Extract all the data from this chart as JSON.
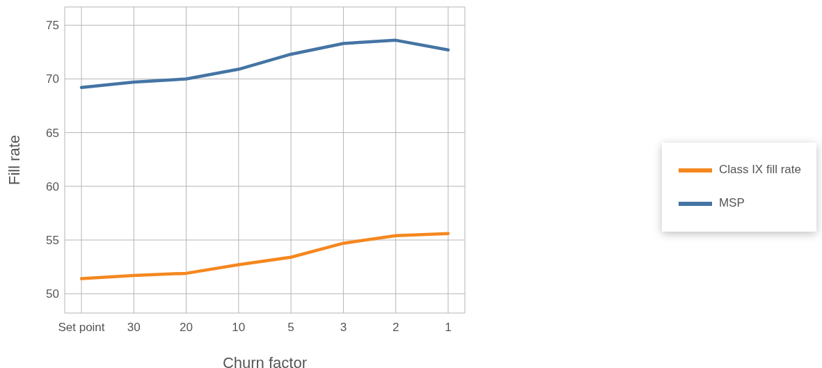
{
  "chart_data": {
    "type": "line",
    "xlabel": "Churn factor",
    "ylabel": "Fill rate",
    "categories": [
      "Set point",
      "30",
      "20",
      "10",
      "5",
      "3",
      "2",
      "1"
    ],
    "series": [
      {
        "name": "MSP",
        "color": "#4474a4",
        "values": [
          69.2,
          69.7,
          70.0,
          70.9,
          72.3,
          73.3,
          73.6,
          72.7
        ]
      },
      {
        "name": "Class IX fill rate",
        "color": "#f5871f",
        "values": [
          51.4,
          51.7,
          51.9,
          52.7,
          53.4,
          54.7,
          55.4,
          55.6
        ]
      }
    ],
    "ylim": [
      48.2,
      76.7
    ],
    "yticks": [
      50,
      55,
      60,
      65,
      70,
      75
    ],
    "grid": true,
    "legend": "right",
    "marker": "none",
    "line_style": "solid"
  }
}
